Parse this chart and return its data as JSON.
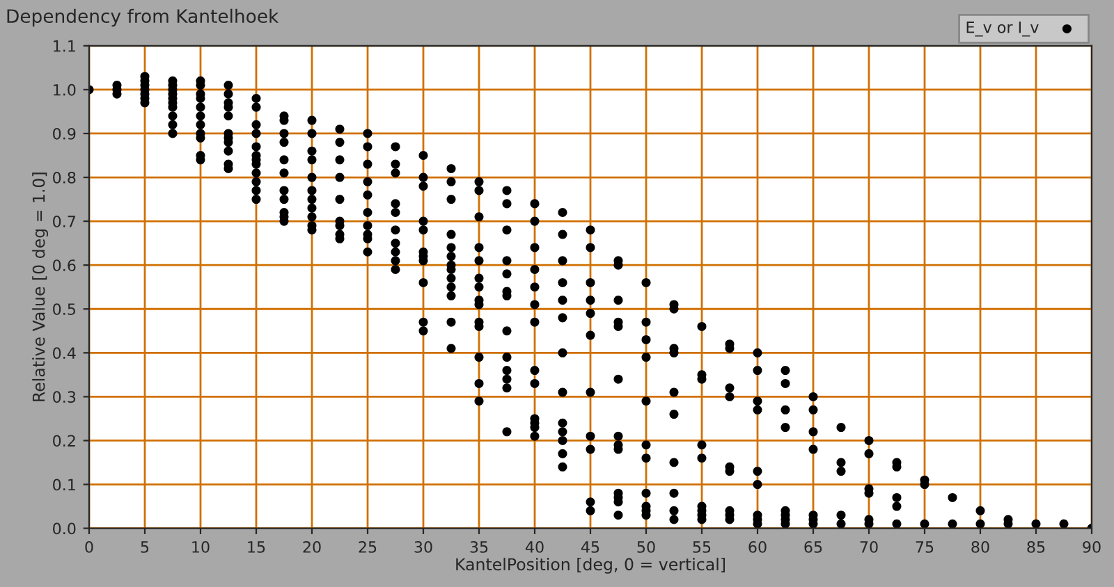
{
  "chart_data": {
    "type": "scatter",
    "title": "Dependency from Kantelhoek",
    "xlabel": "KantelPosition [deg, 0 = vertical]",
    "ylabel": "Relative Value [0 deg = 1.0]",
    "xlim": [
      0,
      90
    ],
    "xticks": [
      0,
      5,
      10,
      15,
      20,
      25,
      30,
      35,
      40,
      45,
      50,
      55,
      60,
      65,
      70,
      75,
      80,
      85,
      90
    ],
    "ylim": [
      0,
      1.1
    ],
    "yticks": [
      {
        "value": 0,
        "label": "0.0"
      },
      0.1,
      0.2,
      0.3,
      0.4,
      0.5,
      0.6,
      0.7,
      0.8,
      0.9,
      {
        "value": 1,
        "label": "1.0"
      },
      1.1
    ],
    "grid": true,
    "legend": "top right",
    "marker": "circle",
    "series": [
      {
        "name": "E_v or I_v",
        "color": "#000000",
        "x": [
          0,
          2.5,
          2.5,
          2.5,
          5,
          5,
          5,
          5,
          5,
          5,
          5,
          7.5,
          7.5,
          7.5,
          7.5,
          7.5,
          7.5,
          7.5,
          7.5,
          7.5,
          7.5,
          10,
          10,
          10,
          10,
          10,
          10,
          10,
          10,
          10,
          10,
          10,
          12.5,
          12.5,
          12.5,
          12.5,
          12.5,
          12.5,
          12.5,
          12.5,
          12.5,
          12.5,
          12.5,
          15,
          15,
          15,
          15,
          15,
          15,
          15,
          15,
          15,
          15,
          15,
          15,
          17.5,
          17.5,
          17.5,
          17.5,
          17.5,
          17.5,
          17.5,
          17.5,
          17.5,
          17.5,
          17.5,
          20,
          20,
          20,
          20,
          20,
          20,
          20,
          20,
          20,
          20,
          20,
          22.5,
          22.5,
          22.5,
          22.5,
          22.5,
          22.5,
          22.5,
          22.5,
          22.5,
          25,
          25,
          25,
          25,
          25,
          25,
          25,
          25,
          25,
          25,
          27.5,
          27.5,
          27.5,
          27.5,
          27.5,
          27.5,
          27.5,
          27.5,
          27.5,
          27.5,
          30,
          30,
          30,
          30,
          30,
          30,
          30,
          30,
          30,
          30,
          30,
          32.5,
          32.5,
          32.5,
          32.5,
          32.5,
          32.5,
          32.5,
          32.5,
          32.5,
          32.5,
          32.5,
          32.5,
          32.5,
          35,
          35,
          35,
          35,
          35,
          35,
          35,
          35,
          35,
          35,
          35,
          35,
          35,
          35,
          37.5,
          37.5,
          37.5,
          37.5,
          37.5,
          37.5,
          37.5,
          37.5,
          37.5,
          37.5,
          37.5,
          37.5,
          37.5,
          40,
          40,
          40,
          40,
          40,
          40,
          40,
          40,
          40,
          40,
          40,
          40,
          40,
          42.5,
          42.5,
          42.5,
          42.5,
          42.5,
          42.5,
          42.5,
          42.5,
          42.5,
          42.5,
          42.5,
          42.5,
          42.5,
          45,
          45,
          45,
          45,
          45,
          45,
          45,
          45,
          45,
          45,
          45,
          47.5,
          47.5,
          47.5,
          47.5,
          47.5,
          47.5,
          47.5,
          47.5,
          47.5,
          47.5,
          47.5,
          47.5,
          47.5,
          50,
          50,
          50,
          50,
          50,
          50,
          50,
          50,
          50,
          50,
          50,
          52.5,
          52.5,
          52.5,
          52.5,
          52.5,
          52.5,
          52.5,
          52.5,
          52.5,
          52.5,
          55,
          55,
          55,
          55,
          55,
          55,
          55,
          55,
          55,
          57.5,
          57.5,
          57.5,
          57.5,
          57.5,
          57.5,
          57.5,
          57.5,
          57.5,
          60,
          60,
          60,
          60,
          60,
          60,
          60,
          60,
          60,
          62.5,
          62.5,
          62.5,
          62.5,
          62.5,
          62.5,
          62.5,
          62.5,
          65,
          65,
          65,
          65,
          65,
          65,
          65,
          67.5,
          67.5,
          67.5,
          67.5,
          67.5,
          70,
          70,
          70,
          70,
          70,
          70,
          72.5,
          72.5,
          72.5,
          72.5,
          72.5,
          75,
          75,
          75,
          77.5,
          77.5,
          80,
          80,
          82.5,
          82.5,
          85,
          87.5,
          90
        ],
        "values": [
          1.0,
          0.99,
          1.0,
          1.01,
          0.97,
          0.98,
          0.99,
          1.0,
          1.01,
          1.02,
          1.03,
          1.02,
          1.01,
          1.0,
          0.99,
          0.98,
          0.97,
          0.96,
          0.94,
          0.92,
          0.9,
          1.02,
          1.01,
          0.99,
          0.98,
          0.96,
          0.94,
          0.92,
          0.9,
          0.89,
          0.85,
          0.84,
          1.01,
          0.99,
          0.97,
          0.96,
          0.94,
          0.9,
          0.89,
          0.88,
          0.86,
          0.83,
          0.82,
          0.98,
          0.96,
          0.92,
          0.9,
          0.87,
          0.85,
          0.84,
          0.83,
          0.81,
          0.79,
          0.77,
          0.75,
          0.94,
          0.93,
          0.9,
          0.88,
          0.84,
          0.81,
          0.77,
          0.75,
          0.72,
          0.71,
          0.7,
          0.93,
          0.9,
          0.86,
          0.84,
          0.8,
          0.77,
          0.75,
          0.73,
          0.71,
          0.69,
          0.68,
          0.91,
          0.88,
          0.84,
          0.8,
          0.75,
          0.7,
          0.69,
          0.67,
          0.66,
          0.9,
          0.87,
          0.83,
          0.79,
          0.76,
          0.72,
          0.69,
          0.67,
          0.66,
          0.63,
          0.87,
          0.83,
          0.81,
          0.74,
          0.72,
          0.68,
          0.65,
          0.63,
          0.61,
          0.59,
          0.85,
          0.8,
          0.78,
          0.7,
          0.68,
          0.63,
          0.62,
          0.61,
          0.56,
          0.47,
          0.45,
          0.82,
          0.79,
          0.75,
          0.67,
          0.64,
          0.62,
          0.6,
          0.59,
          0.57,
          0.55,
          0.53,
          0.47,
          0.41,
          0.79,
          0.77,
          0.71,
          0.64,
          0.61,
          0.57,
          0.55,
          0.52,
          0.51,
          0.47,
          0.46,
          0.39,
          0.33,
          0.29,
          0.77,
          0.74,
          0.68,
          0.61,
          0.58,
          0.54,
          0.53,
          0.45,
          0.39,
          0.36,
          0.34,
          0.32,
          0.22,
          0.74,
          0.7,
          0.64,
          0.59,
          0.55,
          0.51,
          0.47,
          0.36,
          0.33,
          0.25,
          0.24,
          0.23,
          0.21,
          0.72,
          0.67,
          0.61,
          0.56,
          0.52,
          0.48,
          0.4,
          0.31,
          0.24,
          0.22,
          0.2,
          0.17,
          0.14,
          0.68,
          0.64,
          0.56,
          0.52,
          0.49,
          0.44,
          0.31,
          0.21,
          0.18,
          0.06,
          0.04,
          0.61,
          0.6,
          0.52,
          0.47,
          0.46,
          0.34,
          0.21,
          0.19,
          0.18,
          0.08,
          0.07,
          0.06,
          0.03,
          0.56,
          0.47,
          0.43,
          0.39,
          0.29,
          0.19,
          0.16,
          0.08,
          0.05,
          0.04,
          0.03,
          0.51,
          0.5,
          0.41,
          0.4,
          0.31,
          0.26,
          0.15,
          0.08,
          0.04,
          0.02,
          0.46,
          0.35,
          0.34,
          0.19,
          0.16,
          0.05,
          0.04,
          0.03,
          0.02,
          0.42,
          0.41,
          0.32,
          0.3,
          0.14,
          0.13,
          0.04,
          0.03,
          0.02,
          0.4,
          0.36,
          0.29,
          0.27,
          0.13,
          0.1,
          0.03,
          0.02,
          0.01,
          0.36,
          0.33,
          0.27,
          0.23,
          0.04,
          0.03,
          0.02,
          0.01,
          0.3,
          0.27,
          0.22,
          0.18,
          0.03,
          0.02,
          0.01,
          0.23,
          0.15,
          0.13,
          0.03,
          0.01,
          0.2,
          0.17,
          0.09,
          0.08,
          0.02,
          0.01,
          0.15,
          0.14,
          0.07,
          0.05,
          0.01,
          0.11,
          0.1,
          0.01,
          0.07,
          0.01,
          0.04,
          0.01,
          0.02,
          0.01,
          0.01,
          0.01,
          0.0
        ]
      }
    ]
  }
}
